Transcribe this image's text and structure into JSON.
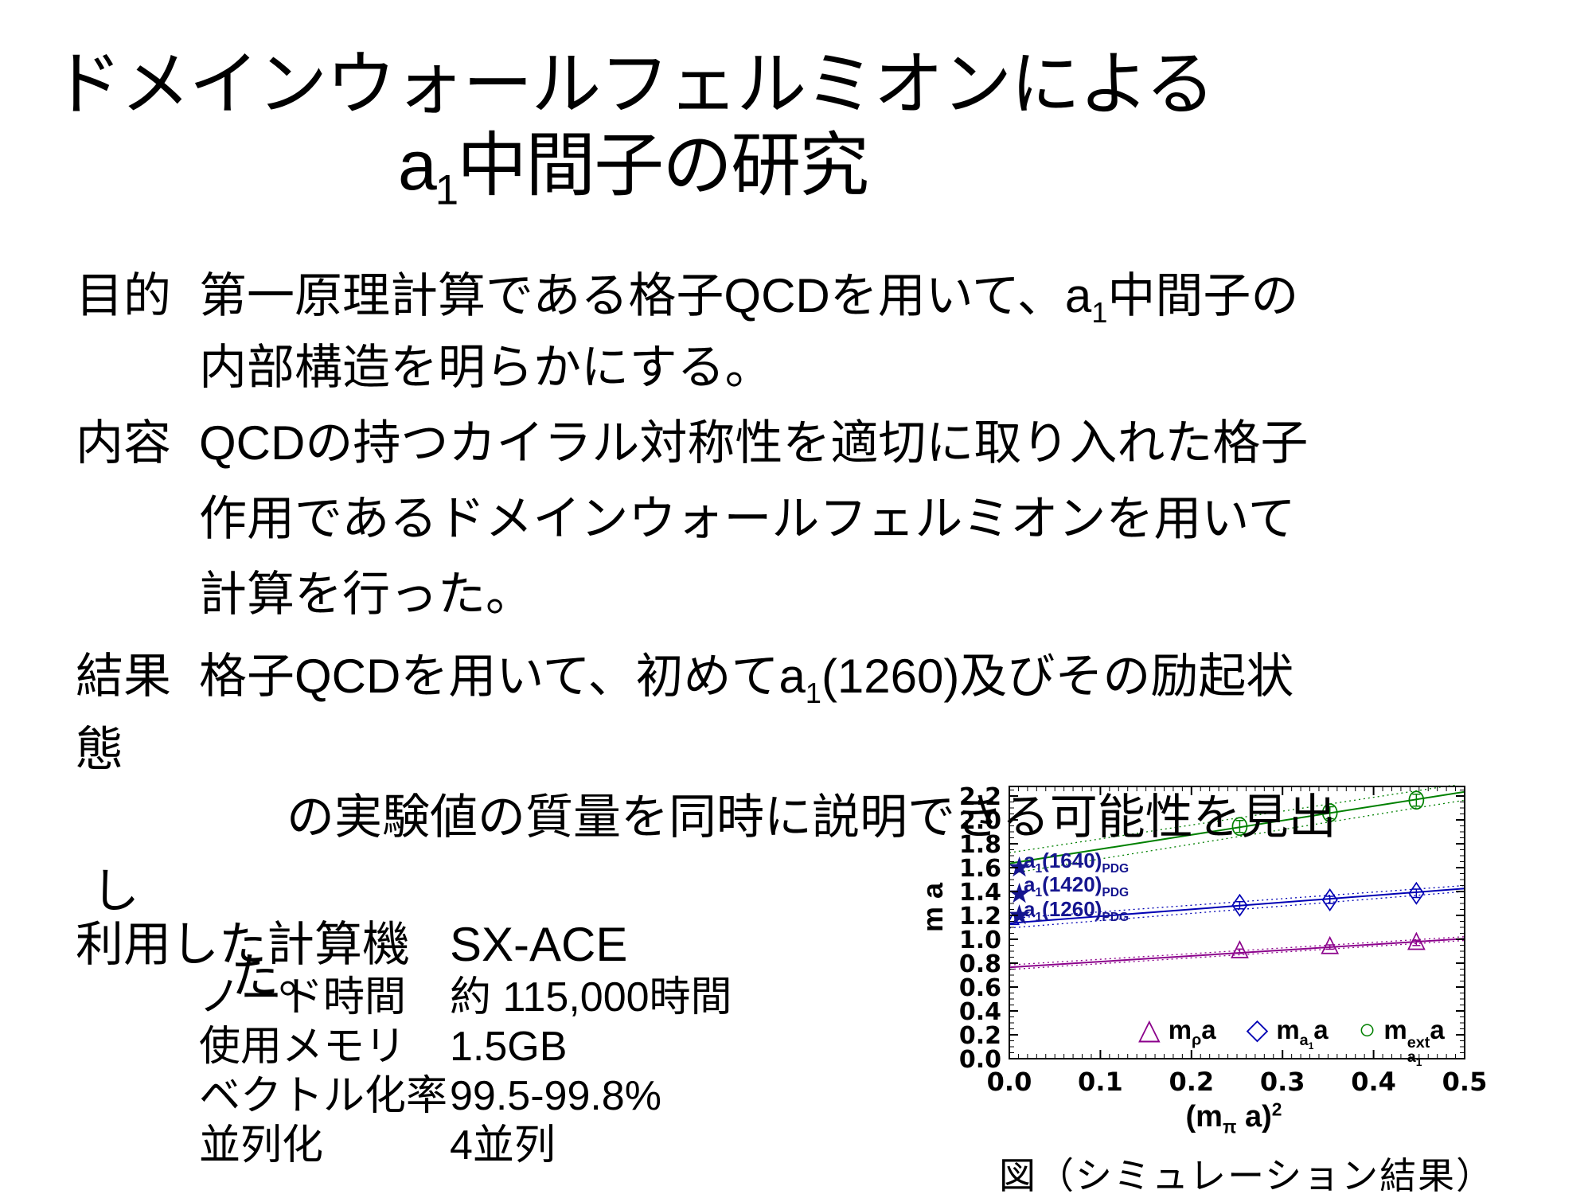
{
  "title": {
    "line1": "ドメインウォールフェルミオンによる",
    "line2_pre": "a",
    "line2_sub": "1",
    "line2_post": "中間子の研究"
  },
  "sections": {
    "purpose": {
      "label": "目的",
      "line1_pre": "第一原理計算である格子QCDを用いて、a",
      "line1_sub": "1",
      "line1_post": "中間子の",
      "line2": "内部構造を明らかにする。"
    },
    "method": {
      "label": "内容",
      "line1": "QCDの持つカイラル対称性を適切に取り入れた格子",
      "line2": "作用であるドメインウォールフェルミオンを用いて",
      "line3": "計算を行った。"
    },
    "result": {
      "label": "結果",
      "line1_pre": "格子QCDを用いて、初めてa",
      "line1_sub": "1",
      "line1_post": "(1260)及びその励起状",
      "overflow1": "態",
      "line2": "の実験値の質量を同時に説明できる可能性を見出",
      "overflow2": "し",
      "overflow3": "た。"
    }
  },
  "computer": {
    "label": "利用した計算機",
    "name": "SX-ACE",
    "specs": [
      {
        "label": "ノード時間",
        "value": "約 115,000時間"
      },
      {
        "label": "使用メモリ",
        "value": "1.5GB"
      },
      {
        "label": "ベクトル化率",
        "value": "99.5-99.8%"
      },
      {
        "label": "並列化",
        "value": "4並列"
      }
    ]
  },
  "figure": {
    "caption": "図（シミュレーション結果）",
    "ylabel": "m a",
    "xlabel_parts": {
      "pre": "(m",
      "sub": "π",
      "mid": " a)",
      "sup": "2"
    },
    "pdg_labels": [
      {
        "pre": "a",
        "sub": "1",
        "mid": "(1640)",
        "sub2": "PDG"
      },
      {
        "pre": "a",
        "sub": "1",
        "mid": "(1420)",
        "sub2": "PDG"
      },
      {
        "pre": "a",
        "sub": "1",
        "mid": "(1260)",
        "sub2": "PDG"
      }
    ],
    "legend": [
      {
        "marker": "△",
        "m": "m",
        "sub": "ρ",
        "tail": "a"
      },
      {
        "marker": "◇",
        "m": "m",
        "sub": "a",
        "subsub": "1",
        "tail": "a"
      },
      {
        "marker": "○",
        "m": "m",
        "sub": "a",
        "subsub": "1",
        "sup": "ext",
        "tail": "a"
      }
    ]
  },
  "chart_data": {
    "type": "scatter",
    "title": "",
    "xlabel": "(m_pi a)^2",
    "ylabel": "m a",
    "xlim": [
      0.0,
      0.5
    ],
    "ylim": [
      0.0,
      2.28
    ],
    "grid": false,
    "legend_position": "bottom-inside",
    "x_ticks": [
      0.0,
      0.1,
      0.2,
      0.3,
      0.4,
      0.5
    ],
    "y_ticks": [
      0.0,
      0.2,
      0.4,
      0.6,
      0.8,
      1.0,
      1.2,
      1.4,
      1.6,
      1.8,
      2.0,
      2.2
    ],
    "pdg_color": "#15158f",
    "pdg_markers": [
      {
        "label": "a1(1640)PDG",
        "x": 0.004,
        "y": 1.6
      },
      {
        "label": "a1(1420)PDG",
        "x": 0.004,
        "y": 1.38
      },
      {
        "label": "a1(1260)PDG",
        "x": 0.004,
        "y": 1.2
      }
    ],
    "series": [
      {
        "name": "m_rho a",
        "marker": "triangle",
        "color": "#8b008b",
        "fit_line": [
          [
            0.0,
            0.765
          ],
          [
            0.5,
            1.005
          ]
        ],
        "band_upper": [
          [
            0.0,
            0.785
          ],
          [
            0.5,
            1.022
          ]
        ],
        "band_lower": [
          [
            0.0,
            0.747
          ],
          [
            0.5,
            0.99
          ]
        ],
        "points": [
          {
            "x": 0.253,
            "y": 0.9,
            "err": 0.018
          },
          {
            "x": 0.352,
            "y": 0.935,
            "err": 0.018
          },
          {
            "x": 0.447,
            "y": 0.97,
            "err": 0.022
          }
        ]
      },
      {
        "name": "m_a1 a",
        "marker": "diamond",
        "color": "#0000b4",
        "fit_line": [
          [
            0.0,
            1.135
          ],
          [
            0.5,
            1.425
          ]
        ],
        "band_upper": [
          [
            0.0,
            1.175
          ],
          [
            0.5,
            1.45
          ]
        ],
        "band_lower": [
          [
            0.0,
            1.095
          ],
          [
            0.5,
            1.4
          ]
        ],
        "extrapolated_point": {
          "x": 0.004,
          "y": 1.165
        },
        "points": [
          {
            "x": 0.253,
            "y": 1.285,
            "err": 0.03
          },
          {
            "x": 0.352,
            "y": 1.33,
            "err": 0.03
          },
          {
            "x": 0.447,
            "y": 1.385,
            "err": 0.035
          }
        ]
      },
      {
        "name": "m_a1^ext a",
        "marker": "circle",
        "color": "#008000",
        "fit_line": [
          [
            0.0,
            1.635
          ],
          [
            0.5,
            2.235
          ]
        ],
        "band_upper": [
          [
            0.0,
            1.725
          ],
          [
            0.5,
            2.305
          ]
        ],
        "band_lower": [
          [
            0.0,
            1.55
          ],
          [
            0.5,
            2.165
          ]
        ],
        "points": [
          {
            "x": 0.253,
            "y": 1.945,
            "err": 0.05
          },
          {
            "x": 0.352,
            "y": 2.06,
            "err": 0.05
          },
          {
            "x": 0.447,
            "y": 2.165,
            "err": 0.05
          }
        ]
      }
    ]
  }
}
